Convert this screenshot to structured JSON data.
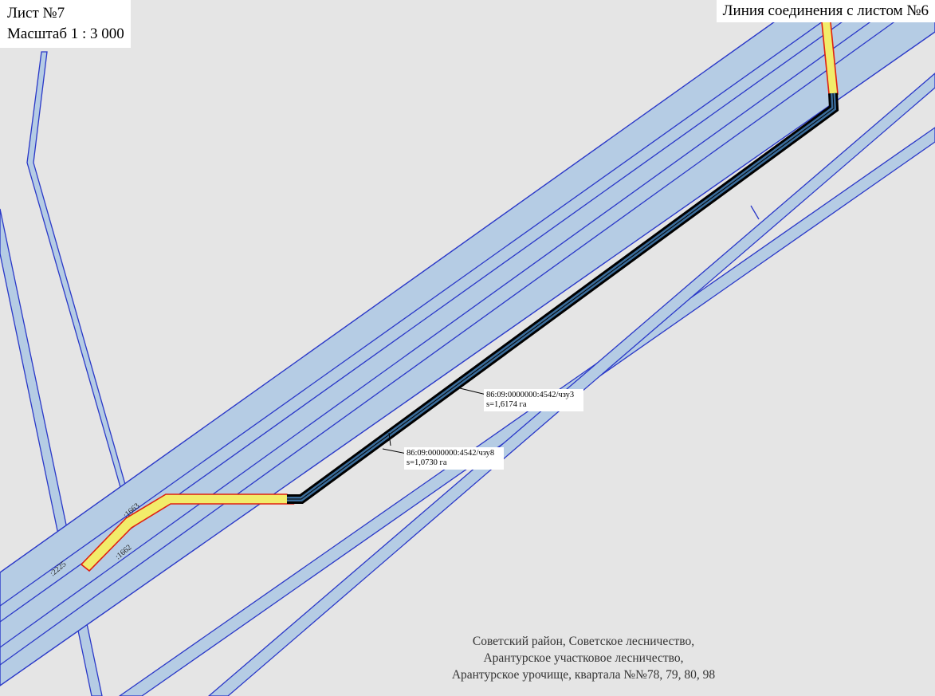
{
  "sheet": {
    "title": "Лист №7",
    "scale": "Масштаб 1 : 3 000"
  },
  "connection_line": "Линия соединения с листом №6",
  "callouts": [
    {
      "cadastral": "86:09:0000000:4542/чзу3",
      "area": "s=1,6174 га"
    },
    {
      "cadastral": "86:09:0000000:4542/чзу8",
      "area": "s=1,0730 га"
    }
  ],
  "parcel_numbers": [
    ":2225",
    ":1663",
    ":1662"
  ],
  "location": [
    "Советский район, Советское лесничество,",
    "Арантурское участковое лесничество,",
    "Арантурское урочище, квартала №№78, 79, 80, 98"
  ],
  "colors": {
    "background": "#e5e5e5",
    "corridor_fill": "#b5cce4",
    "corridor_stroke": "#2a38c8",
    "plot_fill": "#f2ec6a",
    "plot_stroke": "#e02010",
    "pipeline_fill": "#3a6c9a",
    "pipeline_stroke": "#000000"
  }
}
